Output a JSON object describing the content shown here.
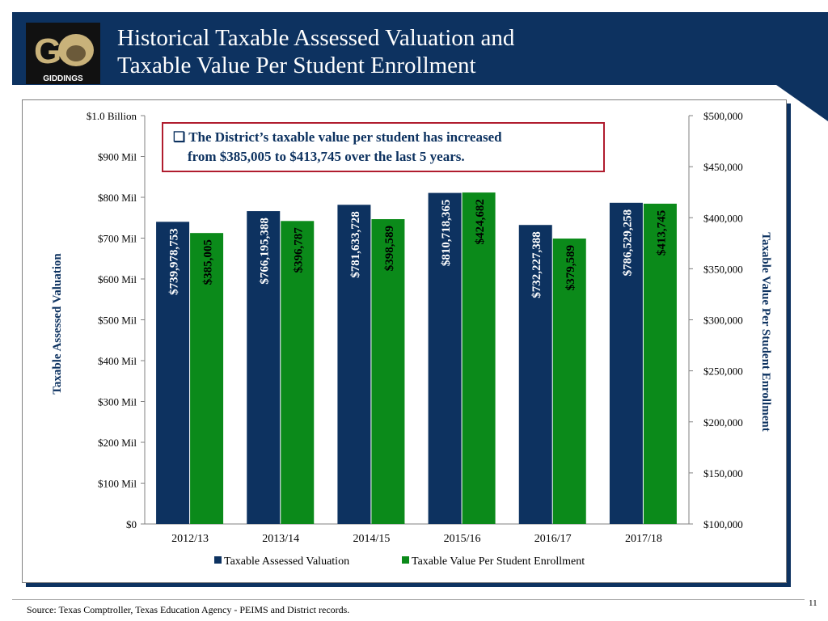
{
  "title": {
    "line1": "Historical Taxable Assessed Valuation and",
    "line2": "Taxable Value Per Student Enrollment"
  },
  "logo": {
    "text": "GIDDINGS"
  },
  "callout": {
    "line1": "The District’s taxable value per student has increased",
    "line2": "from $385,005 to $413,745 over the last 5 years."
  },
  "source": "Source: Texas Comptroller, Texas Education Agency - PEIMS and District records.",
  "page_number": "11",
  "colors": {
    "valuation": "#0d3260",
    "per_student": "#0b8a1a",
    "header": "#0d3260",
    "callout_border": "#b01c2e"
  },
  "chart_data": {
    "type": "bar",
    "categories": [
      "2012/13",
      "2013/14",
      "2014/15",
      "2015/16",
      "2016/17",
      "2017/18"
    ],
    "series": [
      {
        "name": "Taxable Assessed Valuation",
        "axis": "left",
        "values": [
          739978753,
          766195388,
          781633728,
          810718365,
          732227388,
          786529258
        ],
        "labels": [
          "$739,978,753",
          "$766,195,388",
          "$781,633,728",
          "$810,718,365",
          "$732,227,388",
          "$786,529,258"
        ]
      },
      {
        "name": "Taxable Value Per Student Enrollment",
        "axis": "right",
        "values": [
          385005,
          396787,
          398589,
          424682,
          379589,
          413745
        ],
        "labels": [
          "$385,005",
          "$396,787",
          "$398,589",
          "$424,682",
          "$379,589",
          "$413,745"
        ]
      }
    ],
    "y_left": {
      "label": "Taxable Assessed Valuation",
      "min": 0,
      "max": 1000000000,
      "ticks": [
        "$0",
        "$100 Mil",
        "$200 Mil",
        "$300 Mil",
        "$400 Mil",
        "$500 Mil",
        "$600 Mil",
        "$700 Mil",
        "$800 Mil",
        "$900 Mil",
        "$1.0 Billion"
      ]
    },
    "y_right": {
      "label": "Taxable Value Per Student Enrollment",
      "min": 100000,
      "max": 500000,
      "ticks": [
        "$100,000",
        "$150,000",
        "$200,000",
        "$250,000",
        "$300,000",
        "$350,000",
        "$400,000",
        "$450,000",
        "$500,000"
      ]
    },
    "legend": [
      "Taxable Assessed Valuation",
      "Taxable Value Per Student Enrollment"
    ],
    "legend_position": "bottom"
  }
}
